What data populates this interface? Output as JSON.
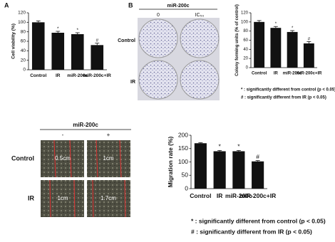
{
  "chart_data": [
    {
      "type": "bar",
      "label": "A",
      "y_label": "Cell viability (%)",
      "categories": [
        "Control",
        "IR",
        "miR-200c",
        "miR-200c+IR"
      ],
      "values": [
        100,
        78,
        75,
        52
      ],
      "errors": [
        3,
        3,
        3,
        4
      ],
      "markers": [
        null,
        "*",
        "*",
        "#"
      ],
      "color": "#111111",
      "ylim": [
        0,
        120
      ],
      "yticks": [
        0,
        20,
        40,
        60,
        80,
        100,
        120
      ]
    },
    {
      "type": "bar",
      "label": "B",
      "y_label": "Colony forming units (% of control)",
      "categories": [
        "Control",
        "IR",
        "miR-200c",
        "miR-200c+IR"
      ],
      "values": [
        100,
        87,
        78,
        53
      ],
      "errors": [
        3,
        3,
        3,
        4
      ],
      "markers": [
        null,
        "*",
        "*",
        "#"
      ],
      "color": "#111111",
      "ylim": [
        0,
        120
      ],
      "yticks": [
        0,
        20,
        40,
        60,
        80,
        100,
        120
      ],
      "notes": [
        "* : significantly different from control (p < 0.05)",
        "# : significantly different from IR (p < 0.05)"
      ]
    },
    {
      "type": "bar",
      "y_label": "Migration rate (%)",
      "categories": [
        "Control",
        "IR",
        "miR-200c",
        "miR-200c+IR"
      ],
      "values": [
        170,
        140,
        140,
        102
      ],
      "errors": [
        2,
        3,
        3,
        3
      ],
      "markers": [
        null,
        "*",
        "*",
        "#"
      ],
      "color": "#111111",
      "ylim": [
        0,
        200
      ],
      "yticks": [
        0,
        50,
        100,
        150,
        200
      ],
      "notes": [
        "* : significantly different from control (p < 0.05)",
        "# : significantly different from IR (p < 0.05)"
      ]
    }
  ],
  "dish_panel": {
    "header": "miR-200c",
    "columns": [
      "0",
      "IC₅₀"
    ],
    "rows": [
      "Control",
      "IR"
    ]
  },
  "migration_panel": {
    "header": "miR-200c",
    "columns": [
      "-",
      "+"
    ],
    "rows": [
      "Control",
      "IR"
    ],
    "widths": [
      [
        "0.5cm",
        "1cm"
      ],
      [
        "1cm",
        "1.7cm"
      ]
    ]
  }
}
